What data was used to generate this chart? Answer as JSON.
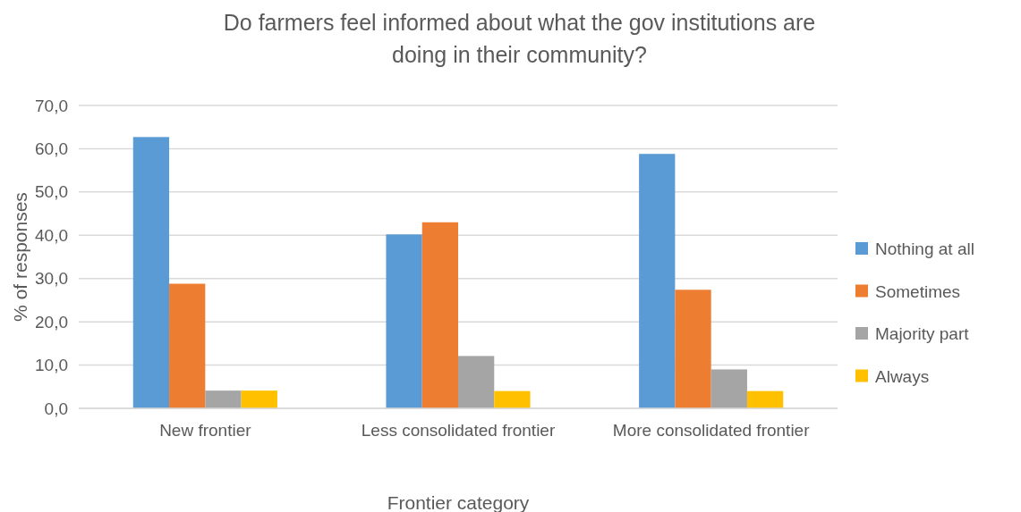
{
  "chart_data": {
    "type": "bar",
    "title": "Do farmers feel informed about what the gov institutions are doing in their community?",
    "xlabel": "Frontier category",
    "ylabel": "% of responses",
    "categories": [
      "New frontier",
      "Less consolidated frontier",
      "More consolidated frontier"
    ],
    "series": [
      {
        "name": "Nothing at all",
        "color": "#5b9bd5",
        "values": [
          62.7,
          40.2,
          58.8
        ]
      },
      {
        "name": "Sometimes",
        "color": "#ed7d31",
        "values": [
          28.8,
          43.0,
          27.4
        ]
      },
      {
        "name": "Majority part",
        "color": "#a5a5a5",
        "values": [
          4.1,
          12.1,
          9.0
        ]
      },
      {
        "name": "Always",
        "color": "#ffc000",
        "values": [
          4.1,
          4.0,
          4.0
        ]
      }
    ],
    "ylim": [
      0,
      70
    ],
    "yticks": [
      {
        "value": 0,
        "label": "0,0"
      },
      {
        "value": 10,
        "label": "10,0"
      },
      {
        "value": 20,
        "label": "20,0"
      },
      {
        "value": 30,
        "label": "30,0"
      },
      {
        "value": 40,
        "label": "40,0"
      },
      {
        "value": 50,
        "label": "50,0"
      },
      {
        "value": 60,
        "label": "60,0"
      },
      {
        "value": 70,
        "label": "70,0"
      }
    ],
    "grid": "y",
    "legend": "right"
  }
}
